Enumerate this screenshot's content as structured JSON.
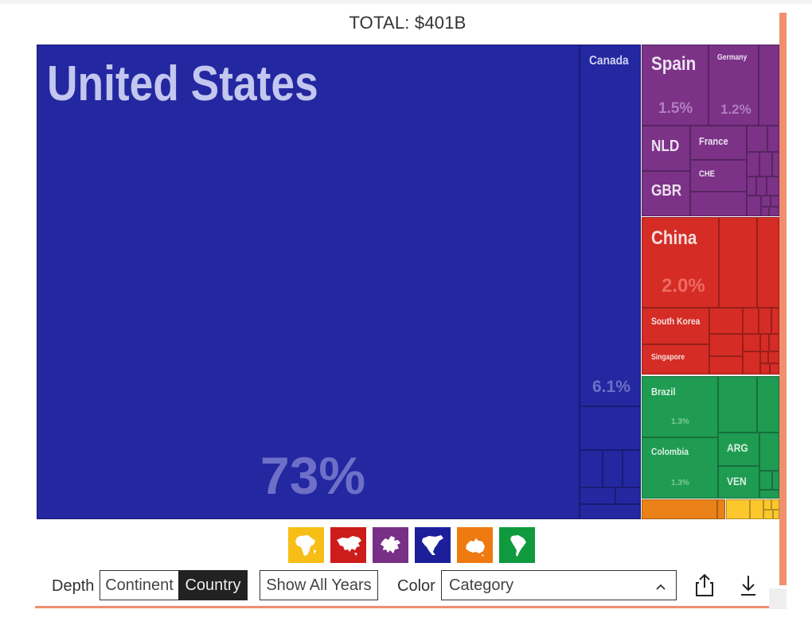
{
  "header": {
    "total": "TOTAL: $401B"
  },
  "chart_data": {
    "type": "treemap",
    "total_label": "TOTAL: $401B",
    "groups": [
      {
        "continent": "North America",
        "color": "#2327a0",
        "items": [
          {
            "label": "United States",
            "value": 73,
            "value_label": "73%"
          },
          {
            "label": "Canada",
            "value": 6.1,
            "value_label": "6.1%"
          }
        ]
      },
      {
        "continent": "Europe",
        "color": "#7b3287",
        "items": [
          {
            "label": "Spain",
            "value": 1.5,
            "value_label": "1.5%"
          },
          {
            "label": "Germany",
            "value": 1.2,
            "value_label": "1.2%"
          },
          {
            "label": "NLD"
          },
          {
            "label": "France"
          },
          {
            "label": "GBR"
          },
          {
            "label": "CHE"
          }
        ]
      },
      {
        "continent": "Asia",
        "color": "#d52c25",
        "items": [
          {
            "label": "China",
            "value": 2.0,
            "value_label": "2.0%"
          },
          {
            "label": "South Korea"
          },
          {
            "label": "Singapore"
          }
        ]
      },
      {
        "continent": "South America",
        "color": "#1f9b52",
        "items": [
          {
            "label": "Brazil",
            "value": 1.3,
            "value_label": "1.3%"
          },
          {
            "label": "Colombia",
            "value": 1.3,
            "value_label": "1.3%"
          },
          {
            "label": "ARG"
          },
          {
            "label": "VEN"
          }
        ]
      },
      {
        "continent": "Oceania",
        "color": "#ea8219",
        "items": []
      },
      {
        "continent": "Africa",
        "color": "#fbc72c",
        "items": []
      }
    ]
  },
  "legend_icons": [
    {
      "name": "africa-icon",
      "color": "#f7be15"
    },
    {
      "name": "asia-icon",
      "color": "#cc1d1a"
    },
    {
      "name": "europe-icon",
      "color": "#782f86"
    },
    {
      "name": "north-america-icon",
      "color": "#1d1f9a"
    },
    {
      "name": "oceania-icon",
      "color": "#ee7a10"
    },
    {
      "name": "south-america-icon",
      "color": "#0f9a3d"
    }
  ],
  "controls": {
    "depth_label": "Depth",
    "depth_options": [
      "Continent",
      "Country"
    ],
    "depth_selected": "Country",
    "show_all_years": "Show All Years",
    "color_label": "Color",
    "color_selected": "Category"
  }
}
